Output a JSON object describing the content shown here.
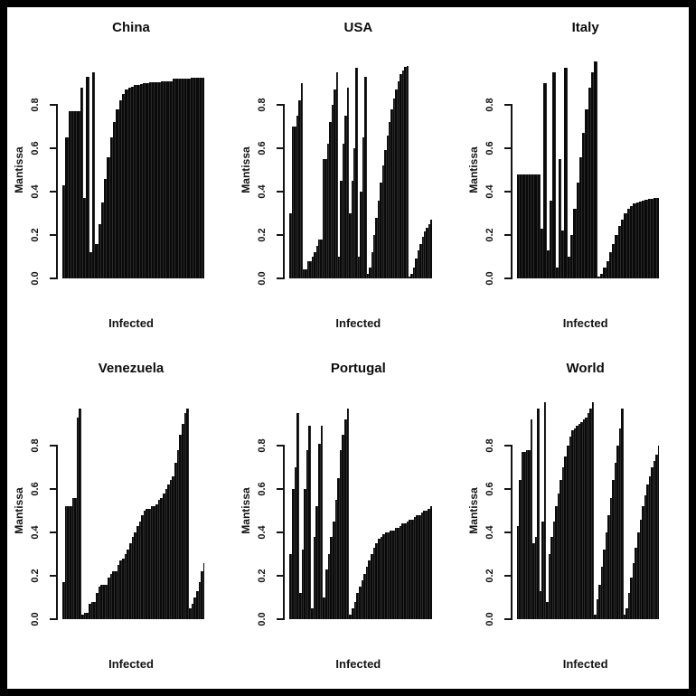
{
  "style": {
    "background": "#ffffff",
    "frame": "#000000",
    "bar_color": "#0a0a0a",
    "text_color": "#141414"
  },
  "chart_data": [
    {
      "type": "bar",
      "title": "China",
      "xlabel": "Infected",
      "ylabel": "Mantissa",
      "yticks": [
        "0.0",
        "0.2",
        "0.4",
        "0.6",
        "0.8"
      ],
      "ylim": [
        0,
        1
      ],
      "grid": false,
      "legend": "none",
      "values": [
        0.43,
        0.65,
        0.77,
        0.77,
        0.77,
        0.77,
        0.88,
        0.37,
        0.93,
        0.12,
        0.95,
        0.16,
        0.25,
        0.35,
        0.46,
        0.56,
        0.65,
        0.72,
        0.78,
        0.82,
        0.85,
        0.87,
        0.88,
        0.885,
        0.89,
        0.893,
        0.896,
        0.899,
        0.901,
        0.903,
        0.904,
        0.905,
        0.906,
        0.907,
        0.908,
        0.909,
        0.91,
        0.92,
        0.92,
        0.921,
        0.921,
        0.922,
        0.922,
        0.923,
        0.923,
        0.924,
        0.924,
        0.925
      ]
    },
    {
      "type": "bar",
      "title": "USA",
      "xlabel": "Infected",
      "ylabel": "Mantissa",
      "yticks": [
        "0.0",
        "0.2",
        "0.4",
        "0.6",
        "0.8"
      ],
      "ylim": [
        0,
        1
      ],
      "grid": false,
      "legend": "none",
      "values": [
        0.3,
        0.7,
        0.7,
        0.75,
        0.82,
        0.9,
        0.04,
        0.04,
        0.08,
        0.08,
        0.1,
        0.12,
        0.15,
        0.18,
        0.18,
        0.55,
        0.55,
        0.62,
        0.72,
        0.8,
        0.87,
        0.95,
        0.1,
        0.45,
        0.62,
        0.75,
        0.88,
        0.3,
        0.45,
        0.6,
        0.97,
        0.1,
        0.4,
        0.65,
        0.93,
        0.02,
        0.05,
        0.12,
        0.2,
        0.28,
        0.36,
        0.44,
        0.52,
        0.59,
        0.66,
        0.72,
        0.78,
        0.83,
        0.87,
        0.91,
        0.94,
        0.96,
        0.975,
        0.98,
        0.01,
        0.02,
        0.05,
        0.09,
        0.13,
        0.16,
        0.19,
        0.215,
        0.235,
        0.25,
        0.27
      ]
    },
    {
      "type": "bar",
      "title": "Italy",
      "xlabel": "Infected",
      "ylabel": "Mantissa",
      "yticks": [
        "0.0",
        "0.2",
        "0.4",
        "0.6",
        "0.8"
      ],
      "ylim": [
        0,
        1
      ],
      "grid": false,
      "legend": "none",
      "values": [
        0.48,
        0.48,
        0.48,
        0.48,
        0.48,
        0.48,
        0.48,
        0.48,
        0.23,
        0.9,
        0.13,
        0.36,
        0.95,
        0.05,
        0.55,
        0.22,
        0.97,
        0.1,
        0.2,
        0.32,
        0.44,
        0.56,
        0.67,
        0.78,
        0.88,
        0.95,
        1.0,
        0.01,
        0.02,
        0.05,
        0.08,
        0.12,
        0.16,
        0.2,
        0.24,
        0.27,
        0.3,
        0.32,
        0.335,
        0.345,
        0.35,
        0.355,
        0.36,
        0.362,
        0.365,
        0.367,
        0.369,
        0.37
      ]
    },
    {
      "type": "bar",
      "title": "Venezuela",
      "xlabel": "Infected",
      "ylabel": "Mantissa",
      "yticks": [
        "0.0",
        "0.2",
        "0.4",
        "0.6",
        "0.8"
      ],
      "ylim": [
        0,
        1
      ],
      "grid": false,
      "legend": "none",
      "values": [
        0.17,
        0.52,
        0.52,
        0.52,
        0.56,
        0.56,
        0.93,
        0.97,
        0.02,
        0.03,
        0.03,
        0.07,
        0.08,
        0.08,
        0.12,
        0.15,
        0.16,
        0.16,
        0.16,
        0.19,
        0.21,
        0.22,
        0.22,
        0.25,
        0.27,
        0.28,
        0.3,
        0.32,
        0.35,
        0.38,
        0.4,
        0.43,
        0.45,
        0.48,
        0.5,
        0.51,
        0.51,
        0.52,
        0.52,
        0.53,
        0.55,
        0.56,
        0.58,
        0.6,
        0.62,
        0.64,
        0.66,
        0.72,
        0.78,
        0.85,
        0.9,
        0.95,
        0.97,
        0.05,
        0.07,
        0.1,
        0.13,
        0.17,
        0.22,
        0.26
      ]
    },
    {
      "type": "bar",
      "title": "Portugal",
      "xlabel": "Infected",
      "ylabel": "Mantissa",
      "yticks": [
        "0.0",
        "0.2",
        "0.4",
        "0.6",
        "0.8"
      ],
      "ylim": [
        0,
        1
      ],
      "grid": false,
      "legend": "none",
      "values": [
        0.3,
        0.6,
        0.7,
        0.95,
        0.12,
        0.32,
        0.6,
        0.78,
        0.89,
        0.05,
        0.38,
        0.52,
        0.81,
        0.89,
        0.1,
        0.23,
        0.3,
        0.38,
        0.45,
        0.55,
        0.65,
        0.78,
        0.85,
        0.92,
        0.97,
        0.02,
        0.05,
        0.08,
        0.12,
        0.15,
        0.18,
        0.21,
        0.24,
        0.27,
        0.3,
        0.33,
        0.35,
        0.37,
        0.38,
        0.39,
        0.4,
        0.4,
        0.41,
        0.41,
        0.42,
        0.42,
        0.43,
        0.44,
        0.44,
        0.45,
        0.46,
        0.46,
        0.47,
        0.48,
        0.48,
        0.49,
        0.5,
        0.5,
        0.51,
        0.52
      ]
    },
    {
      "type": "bar",
      "title": "World",
      "xlabel": "Infected",
      "ylabel": "Mantissa",
      "yticks": [
        "0.0",
        "0.2",
        "0.4",
        "0.6",
        "0.8"
      ],
      "ylim": [
        0,
        1
      ],
      "grid": false,
      "legend": "none",
      "values": [
        0.43,
        0.64,
        0.77,
        0.77,
        0.78,
        0.78,
        0.92,
        0.35,
        0.38,
        0.97,
        0.13,
        0.45,
        1.0,
        0.08,
        0.3,
        0.38,
        0.45,
        0.52,
        0.58,
        0.64,
        0.7,
        0.75,
        0.8,
        0.84,
        0.87,
        0.88,
        0.89,
        0.9,
        0.91,
        0.92,
        0.93,
        0.95,
        0.97,
        1.0,
        0.02,
        0.09,
        0.16,
        0.24,
        0.32,
        0.4,
        0.48,
        0.56,
        0.64,
        0.72,
        0.8,
        0.88,
        0.97,
        0.02,
        0.05,
        0.12,
        0.19,
        0.26,
        0.33,
        0.4,
        0.46,
        0.52,
        0.57,
        0.62,
        0.66,
        0.7,
        0.73,
        0.76,
        0.8
      ]
    }
  ]
}
